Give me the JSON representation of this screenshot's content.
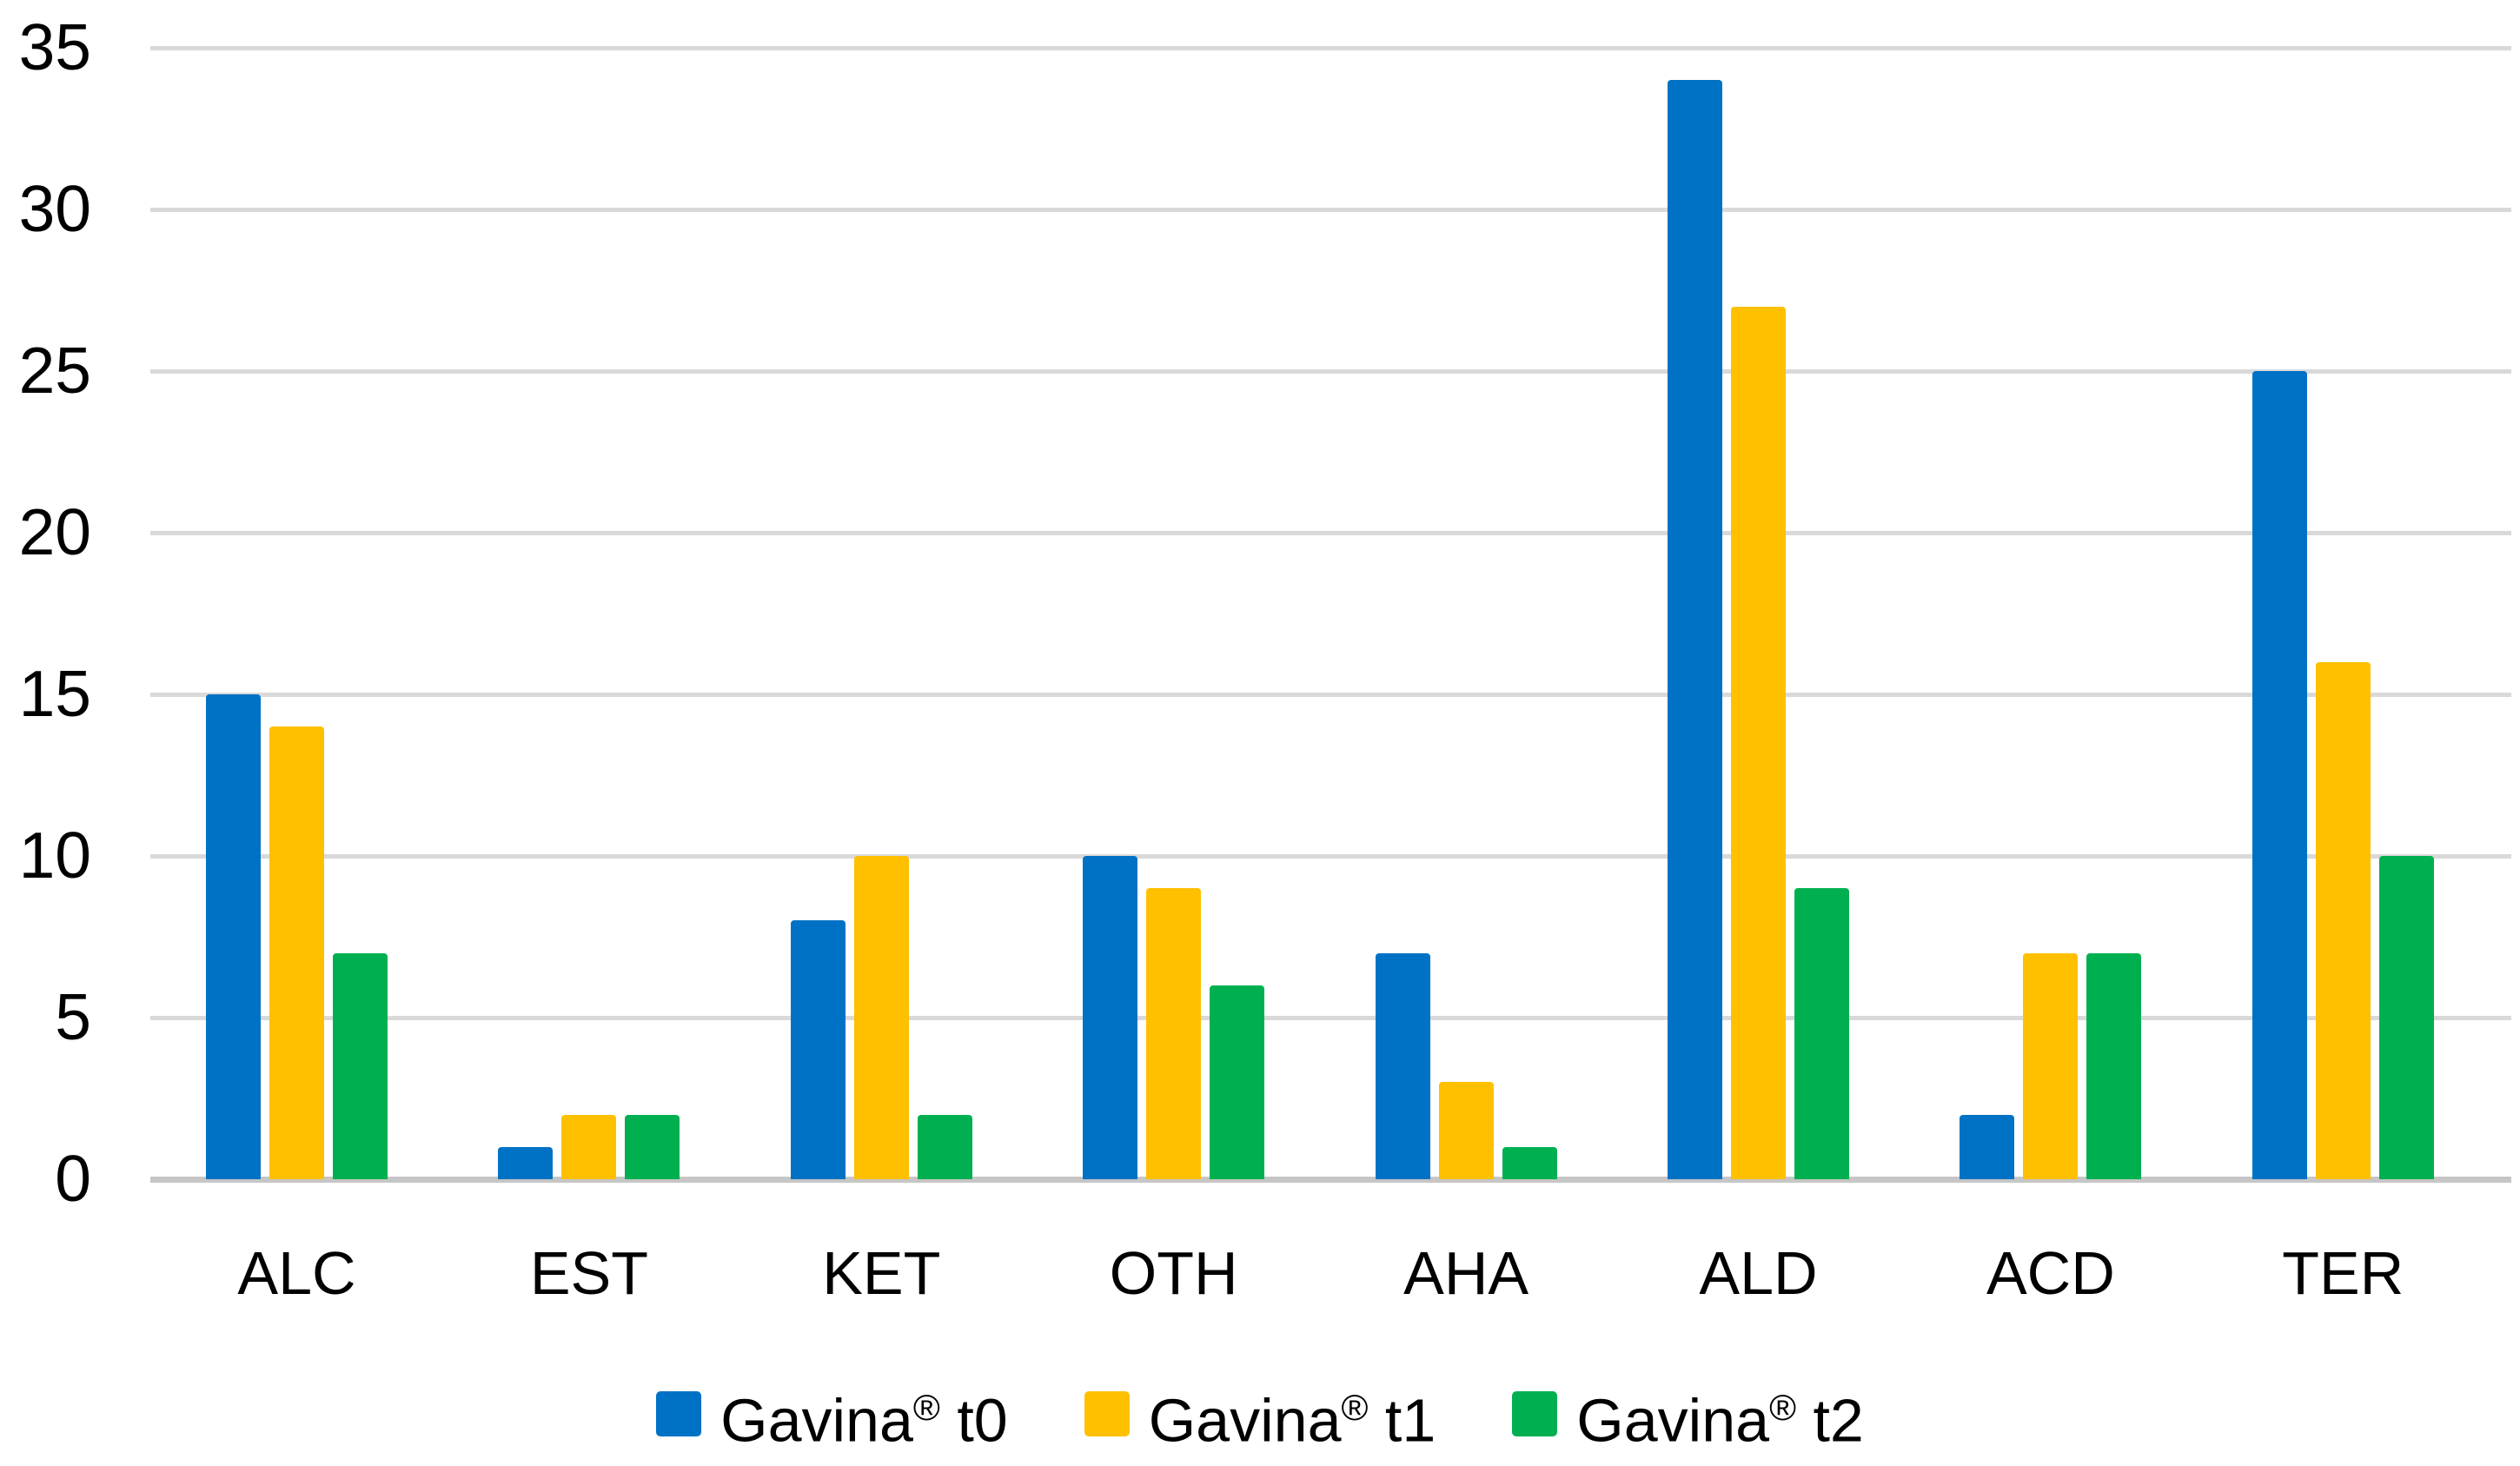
{
  "chart_data": {
    "type": "bar",
    "title": "",
    "xlabel": "",
    "ylabel": "",
    "categories": [
      "ALC",
      "EST",
      "KET",
      "OTH",
      "AHA",
      "ALD",
      "ACD",
      "TER"
    ],
    "series": [
      {
        "name": "Gavina® t0",
        "color": "#0072C6",
        "values": [
          15,
          1,
          8,
          10,
          7,
          34,
          2,
          25
        ]
      },
      {
        "name": "Gavina® t1",
        "color": "#FFC000",
        "values": [
          14,
          2,
          10,
          9,
          3,
          27,
          7,
          16
        ]
      },
      {
        "name": "Gavina® t2",
        "color": "#00B050",
        "values": [
          7,
          2,
          2,
          6,
          1,
          9,
          7,
          10
        ]
      }
    ],
    "ylim": [
      0,
      35
    ],
    "ytick_step": 5,
    "yticks": [
      "0",
      "5",
      "10",
      "15",
      "20",
      "25",
      "30",
      "35"
    ],
    "grid": true,
    "gridline_color": "#D9D9D9",
    "axis_line_color": "#C6C6C6",
    "text_color": "#000000",
    "background_color": "#FFFFFF",
    "legend_position": "bottom"
  }
}
